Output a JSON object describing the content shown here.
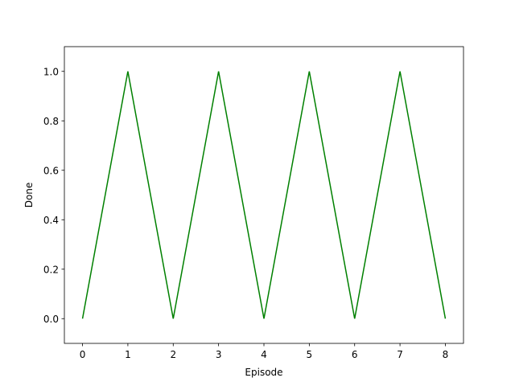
{
  "chart_data": {
    "type": "line",
    "title": "",
    "xlabel": "Episode",
    "ylabel": "Done",
    "xlim": [
      -0.4,
      8.4
    ],
    "ylim": [
      -0.1,
      1.1
    ],
    "x_ticks": [
      0,
      1,
      2,
      3,
      4,
      5,
      6,
      7,
      8
    ],
    "x_tick_labels": [
      "0",
      "1",
      "2",
      "3",
      "4",
      "5",
      "6",
      "7",
      "8"
    ],
    "y_ticks": [
      0.0,
      0.2,
      0.4,
      0.6,
      0.8,
      1.0
    ],
    "y_tick_labels": [
      "0.0",
      "0.2",
      "0.4",
      "0.6",
      "0.8",
      "1.0"
    ],
    "grid": false,
    "series": [
      {
        "color": "#008000",
        "x": [
          0,
          1,
          2,
          3,
          4,
          5,
          6,
          7,
          8
        ],
        "values": [
          0,
          1,
          0,
          1,
          0,
          1,
          0,
          1,
          0
        ]
      }
    ]
  }
}
